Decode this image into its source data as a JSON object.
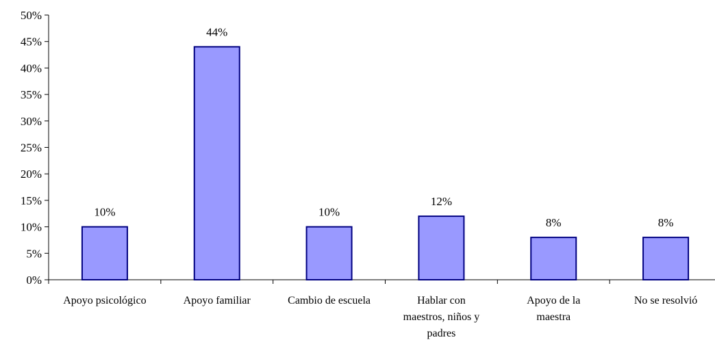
{
  "chart_data": {
    "type": "bar",
    "categories": [
      [
        "Apoyo psicológico"
      ],
      [
        "Apoyo familiar"
      ],
      [
        "Cambio de escuela"
      ],
      [
        "Hablar con",
        "maestros, niños y",
        "padres"
      ],
      [
        "Apoyo de la",
        "maestra"
      ],
      [
        "No se resolvió"
      ]
    ],
    "values": [
      10,
      44,
      10,
      12,
      8,
      8
    ],
    "data_labels": [
      "10%",
      "44%",
      "10%",
      "12%",
      "8%",
      "8%"
    ],
    "ylim": [
      0,
      50
    ],
    "ytick_step": 5,
    "ytick_labels": [
      "0%",
      "5%",
      "10%",
      "15%",
      "20%",
      "25%",
      "30%",
      "35%",
      "40%",
      "45%",
      "50%"
    ],
    "grid": false,
    "legend": "none",
    "colors": {
      "bar_fill": "#9999FF",
      "bar_stroke": "#000080",
      "axis": "#000000"
    }
  }
}
